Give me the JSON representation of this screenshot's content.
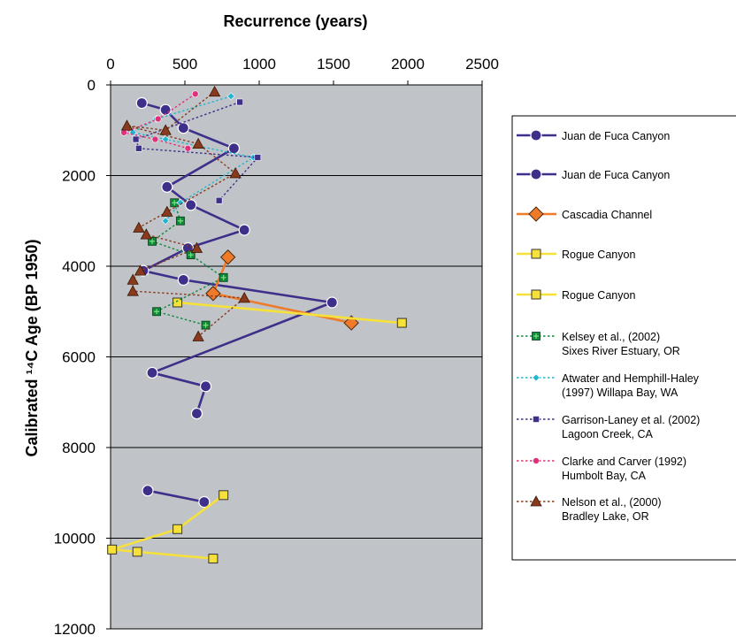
{
  "chart_data": {
    "type": "scatter",
    "title": "",
    "xlabel": "Recurrence (years)",
    "xlabel_position": "top",
    "ylabel": "Calibrated ¹⁴C Age (BP 1950)",
    "xlim": [
      0,
      2500
    ],
    "ylim": [
      0,
      12000
    ],
    "y_inverted": true,
    "xticks": [
      "0",
      "500",
      "1000",
      "1500",
      "2000",
      "2500"
    ],
    "yticks": [
      "0",
      "2000",
      "4000",
      "6000",
      "8000",
      "10000",
      "12000"
    ],
    "grid": "horizontal",
    "plot_background": "#c0c4c8",
    "legend_position": "right",
    "series": [
      {
        "legend_lines": [
          "Juan de Fuca Canyon"
        ],
        "color": "#3d2f8a",
        "marker": "circle",
        "line": "solid",
        "points": [
          [
            210,
            400
          ],
          [
            370,
            550
          ],
          [
            490,
            950
          ],
          [
            830,
            1400
          ],
          [
            380,
            2250
          ],
          [
            540,
            2650
          ],
          [
            900,
            3200
          ],
          [
            520,
            3600
          ],
          [
            220,
            4100
          ],
          [
            490,
            4300
          ],
          [
            1490,
            4800
          ],
          [
            280,
            6350
          ],
          [
            640,
            6650
          ],
          [
            580,
            7250
          ]
        ]
      },
      {
        "legend_lines": [
          "Juan de Fuca Canyon"
        ],
        "color": "#3d2f8a",
        "marker": "circle",
        "line": "solid",
        "points": [
          [
            250,
            8950
          ],
          [
            630,
            9200
          ]
        ]
      },
      {
        "legend_lines": [
          "Cascadia Channel"
        ],
        "color": "#ee7a2a",
        "marker": "diamond",
        "line": "solid",
        "points": [
          [
            790,
            3800
          ],
          [
            690,
            4600
          ],
          [
            1620,
            5250
          ]
        ]
      },
      {
        "legend_lines": [
          "Rogue Canyon"
        ],
        "color": "#f5e13a",
        "marker": "square",
        "line": "solid",
        "points": [
          [
            450,
            4800
          ],
          [
            1960,
            5250
          ]
        ]
      },
      {
        "legend_lines": [
          "Rogue Canyon"
        ],
        "color": "#f5e13a",
        "marker": "square",
        "line": "solid",
        "points": [
          [
            760,
            9050
          ],
          [
            450,
            9800
          ],
          [
            10,
            10250
          ],
          [
            180,
            10300
          ],
          [
            690,
            10450
          ]
        ]
      },
      {
        "legend_lines": [
          "Kelsey et al., (2002)",
          "Sixes River Estuary, OR"
        ],
        "color": "#0c8a3a",
        "marker": "square-cross",
        "line": "dotted",
        "points": [
          [
            430,
            2600
          ],
          [
            470,
            3000
          ],
          [
            280,
            3450
          ],
          [
            540,
            3750
          ],
          [
            760,
            4250
          ],
          [
            310,
            5000
          ],
          [
            640,
            5300
          ]
        ]
      },
      {
        "legend_lines": [
          "Atwater and Hemphill-Haley",
          "(1997) Willapa Bay, WA"
        ],
        "color": "#21b6d0",
        "marker": "small-diamond",
        "line": "dotted",
        "points": [
          [
            810,
            250
          ],
          [
            310,
            750
          ],
          [
            150,
            1050
          ],
          [
            370,
            1200
          ],
          [
            960,
            1600
          ],
          [
            470,
            2600
          ],
          [
            370,
            3000
          ]
        ]
      },
      {
        "legend_lines": [
          "Garrison-Laney et al. (2002)",
          "Lagoon Creek, CA"
        ],
        "color": "#3d2f8a",
        "marker": "small-square",
        "line": "dotted",
        "points": [
          [
            870,
            380
          ],
          [
            170,
            1200
          ],
          [
            190,
            1400
          ],
          [
            990,
            1600
          ],
          [
            730,
            2550
          ]
        ]
      },
      {
        "legend_lines": [
          "Clarke and Carver (1992)",
          "Humbolt Bay, CA"
        ],
        "color": "#e0307a",
        "marker": "small-circle",
        "line": "dotted",
        "points": [
          [
            570,
            200
          ],
          [
            320,
            750
          ],
          [
            90,
            1050
          ],
          [
            300,
            1200
          ],
          [
            520,
            1400
          ]
        ]
      },
      {
        "legend_lines": [
          "Nelson et al., (2000)",
          "Bradley Lake, OR"
        ],
        "color": "#8a3a1c",
        "marker": "triangle",
        "line": "dotted",
        "points": [
          [
            700,
            150
          ],
          [
            370,
            1000
          ],
          [
            110,
            900
          ],
          [
            590,
            1300
          ],
          [
            840,
            1950
          ],
          [
            380,
            2800
          ],
          [
            190,
            3150
          ],
          [
            240,
            3300
          ],
          [
            580,
            3600
          ],
          [
            200,
            4100
          ],
          [
            150,
            4300
          ],
          [
            150,
            4550
          ],
          [
            900,
            4700
          ],
          [
            590,
            5550
          ]
        ]
      }
    ]
  }
}
